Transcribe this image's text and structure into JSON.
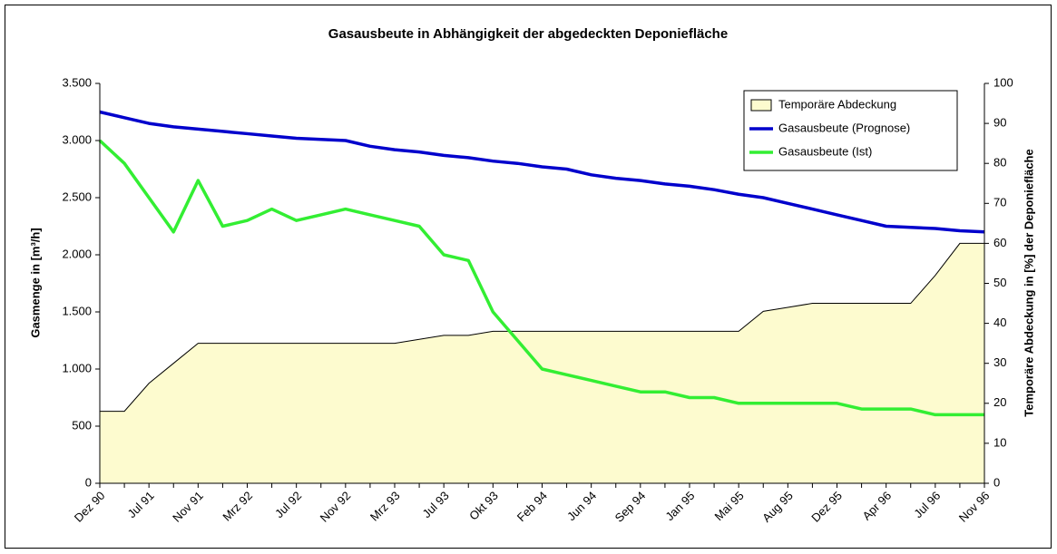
{
  "chart_data": {
    "type": "line",
    "title": "Gasausbeute in Abhängigkeit der abgedeckten Deponiefläche",
    "y_label": "Gasmenge in [m³/h]",
    "y2_label": "Temporäre Abdeckung in [%] der Deponiefläche",
    "categories": [
      "Dez 90",
      null,
      "Jul 91",
      null,
      "Nov 91",
      null,
      "Mrz 92",
      null,
      "Jul 92",
      null,
      "Nov 92",
      null,
      "Mrz 93",
      null,
      "Jul 93",
      null,
      "Okt 93",
      null,
      "Feb 94",
      null,
      "Jun 94",
      null,
      "Sep 94",
      null,
      "Jan 95",
      null,
      "Mai 95",
      null,
      "Aug 95",
      null,
      "Dez 95",
      null,
      "Apr 96",
      null,
      "Jul 96",
      null,
      "Nov 96"
    ],
    "ylim": [
      0,
      3500
    ],
    "yticks": [
      0,
      500,
      {
        "value": 1000,
        "label": "1.000"
      },
      {
        "value": 1500,
        "label": "1.500"
      },
      {
        "value": 2000,
        "label": "2.000"
      },
      {
        "value": 2500,
        "label": "2.500"
      },
      {
        "value": 3000,
        "label": "3.000"
      },
      {
        "value": 3500,
        "label": "3.500"
      }
    ],
    "y2lim": [
      0,
      100
    ],
    "y2ticks": [
      0,
      10,
      20,
      30,
      40,
      50,
      60,
      70,
      80,
      90,
      100
    ],
    "legend": "top-right",
    "series": [
      {
        "name": "Temporäre Abdeckung",
        "type": "area",
        "axis": "y2",
        "color": "#fdfbcf",
        "values": [
          18,
          18,
          25,
          30,
          35,
          35,
          35,
          35,
          35,
          35,
          35,
          35,
          35,
          36,
          37,
          37,
          38,
          38,
          38,
          38,
          38,
          38,
          38,
          38,
          38,
          38,
          38,
          43,
          44,
          45,
          45,
          45,
          45,
          45,
          52,
          60,
          60
        ]
      },
      {
        "name": "Gasausbeute (Prognose)",
        "type": "line",
        "color": "#0000cc",
        "values": [
          3250,
          3200,
          3150,
          3120,
          3100,
          3080,
          3060,
          3040,
          3020,
          3010,
          3000,
          2950,
          2920,
          2900,
          2870,
          2850,
          2820,
          2800,
          2770,
          2750,
          2700,
          2670,
          2650,
          2620,
          2600,
          2570,
          2530,
          2500,
          2450,
          2400,
          2350,
          2300,
          2250,
          2240,
          2230,
          2210,
          2200
        ]
      },
      {
        "name": "Gasausbeute (Ist)",
        "type": "line",
        "color": "#33ee33",
        "values": [
          3000,
          2800,
          2500,
          2200,
          2650,
          2250,
          2300,
          2400,
          2300,
          2350,
          2400,
          2350,
          2300,
          2250,
          2000,
          1950,
          1500,
          1250,
          1000,
          950,
          900,
          850,
          800,
          800,
          750,
          750,
          700,
          700,
          700,
          700,
          700,
          650,
          650,
          650,
          600,
          600,
          600
        ]
      }
    ]
  }
}
